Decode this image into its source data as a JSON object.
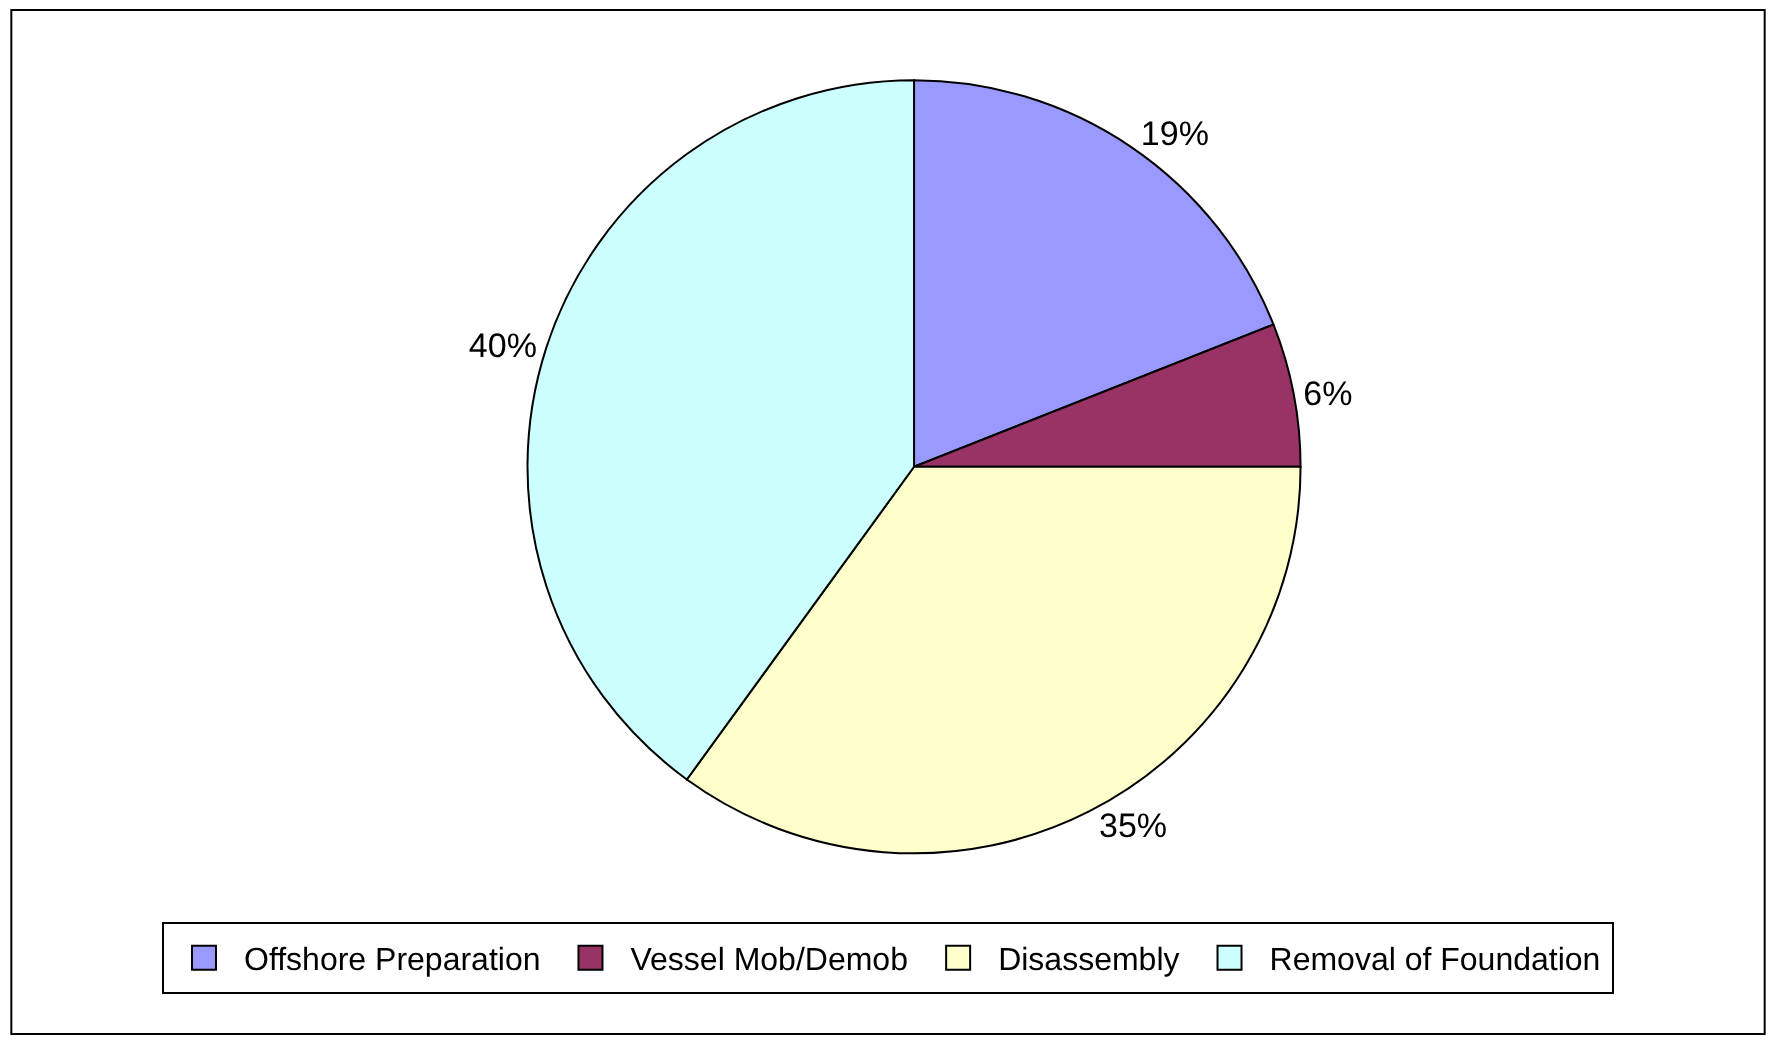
{
  "chart_data": {
    "type": "pie",
    "categories": [
      "Offshore Preparation",
      "Vessel Mob/Demob",
      "Disassembly",
      "Removal of Foundation"
    ],
    "values": [
      19,
      6,
      35,
      40
    ],
    "value_labels": [
      "19%",
      "6%",
      "35%",
      "40%"
    ],
    "colors": [
      "#9999ff",
      "#993366",
      "#ffffcc",
      "#ccffff"
    ],
    "legend": "bottom"
  }
}
